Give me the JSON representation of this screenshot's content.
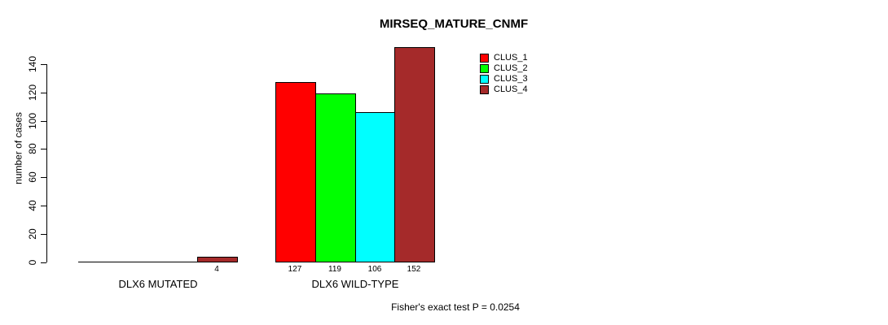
{
  "chart_data": {
    "type": "bar",
    "title": "MIRSEQ_MATURE_CNMF",
    "ylabel": "number of cases",
    "xlabel": "",
    "ylim": [
      0,
      140
    ],
    "yticks": [
      0,
      20,
      40,
      60,
      80,
      100,
      120,
      140
    ],
    "categories": [
      "DLX6 MUTATED",
      "DLX6 WILD-TYPE"
    ],
    "series": [
      {
        "name": "CLUS_1",
        "color": "#ff0000",
        "values": [
          0,
          127
        ]
      },
      {
        "name": "CLUS_2",
        "color": "#00ff00",
        "values": [
          0,
          119
        ]
      },
      {
        "name": "CLUS_3",
        "color": "#00ffff",
        "values": [
          0,
          106
        ]
      },
      {
        "name": "CLUS_4",
        "color": "#a52a2a",
        "values": [
          4,
          152
        ]
      }
    ],
    "bar_labels": [
      [
        "",
        "",
        "",
        "4"
      ],
      [
        "127",
        "119",
        "106",
        "152"
      ]
    ],
    "legend": {
      "position": "top-right"
    },
    "annotation": "Fisher's exact test P = 0.0254",
    "grid": false,
    "background_color": "#ffffff",
    "axis_color": "#000000"
  }
}
